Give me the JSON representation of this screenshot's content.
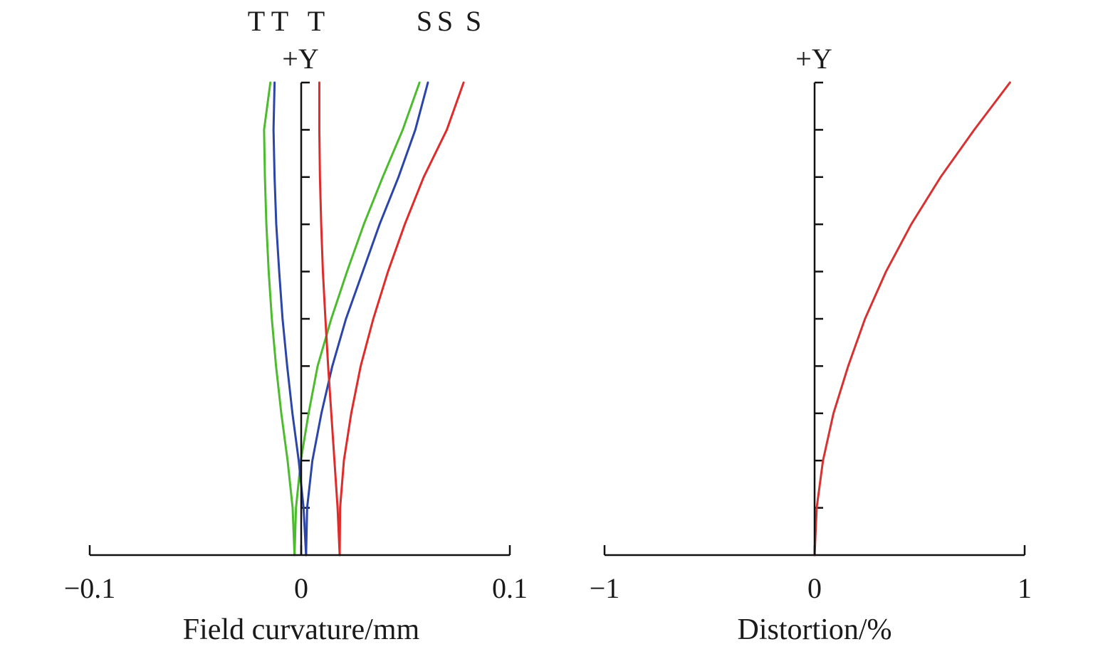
{
  "chart_data": [
    {
      "type": "line",
      "title": "",
      "xlabel": "Field curvature/mm",
      "ylabel": "+Y",
      "xlim": [
        -0.1,
        0.1
      ],
      "ylim": [
        0,
        1
      ],
      "x_ticks": [
        "−0.1",
        "0",
        "0.1"
      ],
      "y_tick_count": 10,
      "grid": false,
      "top_labels": [
        "T",
        "T",
        "T",
        "S",
        "S",
        "S"
      ],
      "series": [
        {
          "color": "#4dbb2e",
          "y": [
            0,
            0.1,
            0.2,
            0.3,
            0.4,
            0.5,
            0.6,
            0.7,
            0.8,
            0.9,
            1.0
          ],
          "x_tangential": [
            -0.0025,
            -0.0034,
            -0.0058,
            -0.0088,
            -0.0113,
            -0.0133,
            -0.0148,
            -0.0159,
            -0.0166,
            -0.017,
            -0.014
          ],
          "x_sagittal": [
            -0.0025,
            -0.0018,
            0.0005,
            0.0042,
            0.0085,
            0.015,
            0.0225,
            0.0305,
            0.0395,
            0.049,
            0.057
          ]
        },
        {
          "color": "#2c45a8",
          "y": [
            0,
            0.1,
            0.2,
            0.3,
            0.4,
            0.5,
            0.6,
            0.7,
            0.8,
            0.9,
            1.0
          ],
          "x_tangential": [
            0.003,
            0.0018,
            -0.0005,
            -0.0035,
            -0.006,
            -0.0082,
            -0.0098,
            -0.0112,
            -0.012,
            -0.0125,
            -0.012
          ],
          "x_sagittal": [
            0.003,
            0.0035,
            0.006,
            0.0103,
            0.0155,
            0.022,
            0.03,
            0.038,
            0.047,
            0.055,
            0.061
          ]
        },
        {
          "color": "#e02b2b",
          "y": [
            0,
            0.1,
            0.2,
            0.3,
            0.4,
            0.5,
            0.6,
            0.7,
            0.8,
            0.9,
            1.0
          ],
          "x_tangential": [
            0.019,
            0.018,
            0.0165,
            0.015,
            0.0135,
            0.0122,
            0.011,
            0.0102,
            0.0096,
            0.0093,
            0.0093
          ],
          "x_sagittal": [
            0.019,
            0.0192,
            0.021,
            0.0245,
            0.029,
            0.035,
            0.042,
            0.05,
            0.059,
            0.07,
            0.078
          ]
        }
      ]
    },
    {
      "type": "line",
      "title": "",
      "xlabel": "Distortion/%",
      "ylabel": "+Y",
      "xlim": [
        -1,
        1
      ],
      "ylim": [
        0,
        1
      ],
      "x_ticks": [
        "−1",
        "0",
        "1"
      ],
      "y_tick_count": 10,
      "grid": false,
      "series": [
        {
          "color": "#d73232",
          "y": [
            0,
            0.1,
            0.2,
            0.3,
            0.4,
            0.5,
            0.6,
            0.7,
            0.8,
            0.9,
            1.0
          ],
          "x": [
            0.0,
            0.01,
            0.04,
            0.09,
            0.16,
            0.24,
            0.34,
            0.46,
            0.6,
            0.76,
            0.93
          ]
        }
      ]
    }
  ]
}
